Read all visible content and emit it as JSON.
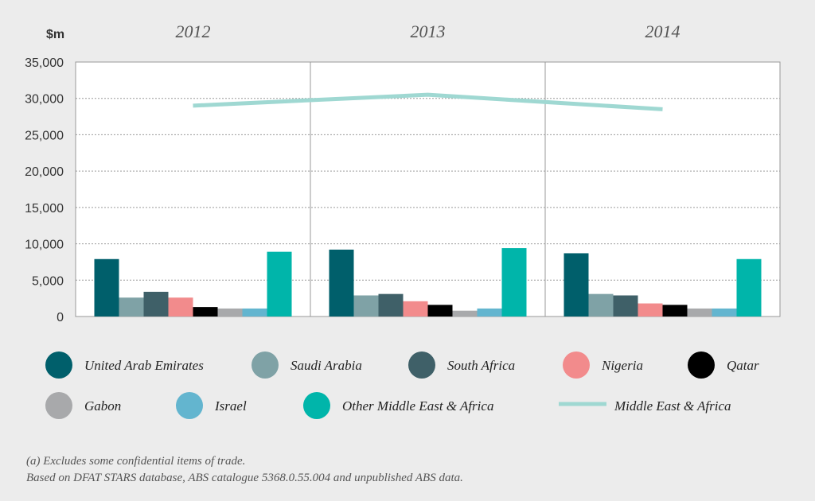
{
  "chart_data": {
    "type": "bar",
    "unit_label": "$m",
    "categories": [
      "2012",
      "2013",
      "2014"
    ],
    "ylim": [
      0,
      35000
    ],
    "yticks": [
      "0",
      "5,000",
      "10,000",
      "15,000",
      "20,000",
      "25,000",
      "30,000",
      "35,000"
    ],
    "ytick_values": [
      0,
      5000,
      10000,
      15000,
      20000,
      25000,
      30000,
      35000
    ],
    "grid": true,
    "series": [
      {
        "name": "United Arab Emirates",
        "color": "#005f6b",
        "values": [
          7900,
          9200,
          8700
        ]
      },
      {
        "name": "Saudi Arabia",
        "color": "#7fa2a6",
        "values": [
          2600,
          2900,
          3100
        ]
      },
      {
        "name": "South Africa",
        "color": "#3f6068",
        "values": [
          3400,
          3100,
          2900
        ]
      },
      {
        "name": "Nigeria",
        "color": "#f28b8c",
        "values": [
          2600,
          2100,
          1800
        ]
      },
      {
        "name": "Qatar",
        "color": "#000000",
        "values": [
          1300,
          1600,
          1600
        ]
      },
      {
        "name": "Gabon",
        "color": "#a8a9ab",
        "values": [
          1100,
          800,
          1100
        ]
      },
      {
        "name": "Israel",
        "color": "#63b5cf",
        "values": [
          1100,
          1100,
          1100
        ]
      },
      {
        "name": "Other Middle East  & Africa",
        "color": "#00b5aa",
        "values": [
          8900,
          9400,
          7900
        ]
      }
    ],
    "line_series": {
      "name": "Middle East & Africa",
      "color": "#9fd8d2",
      "values": [
        29000,
        30500,
        28500
      ]
    },
    "legend_position": "bottom"
  },
  "footnotes": [
    "(a) Excludes some confidential items of trade.",
    "Based on DFAT STARS database, ABS catalogue 5368.0.55.004 and unpublished ABS data."
  ]
}
